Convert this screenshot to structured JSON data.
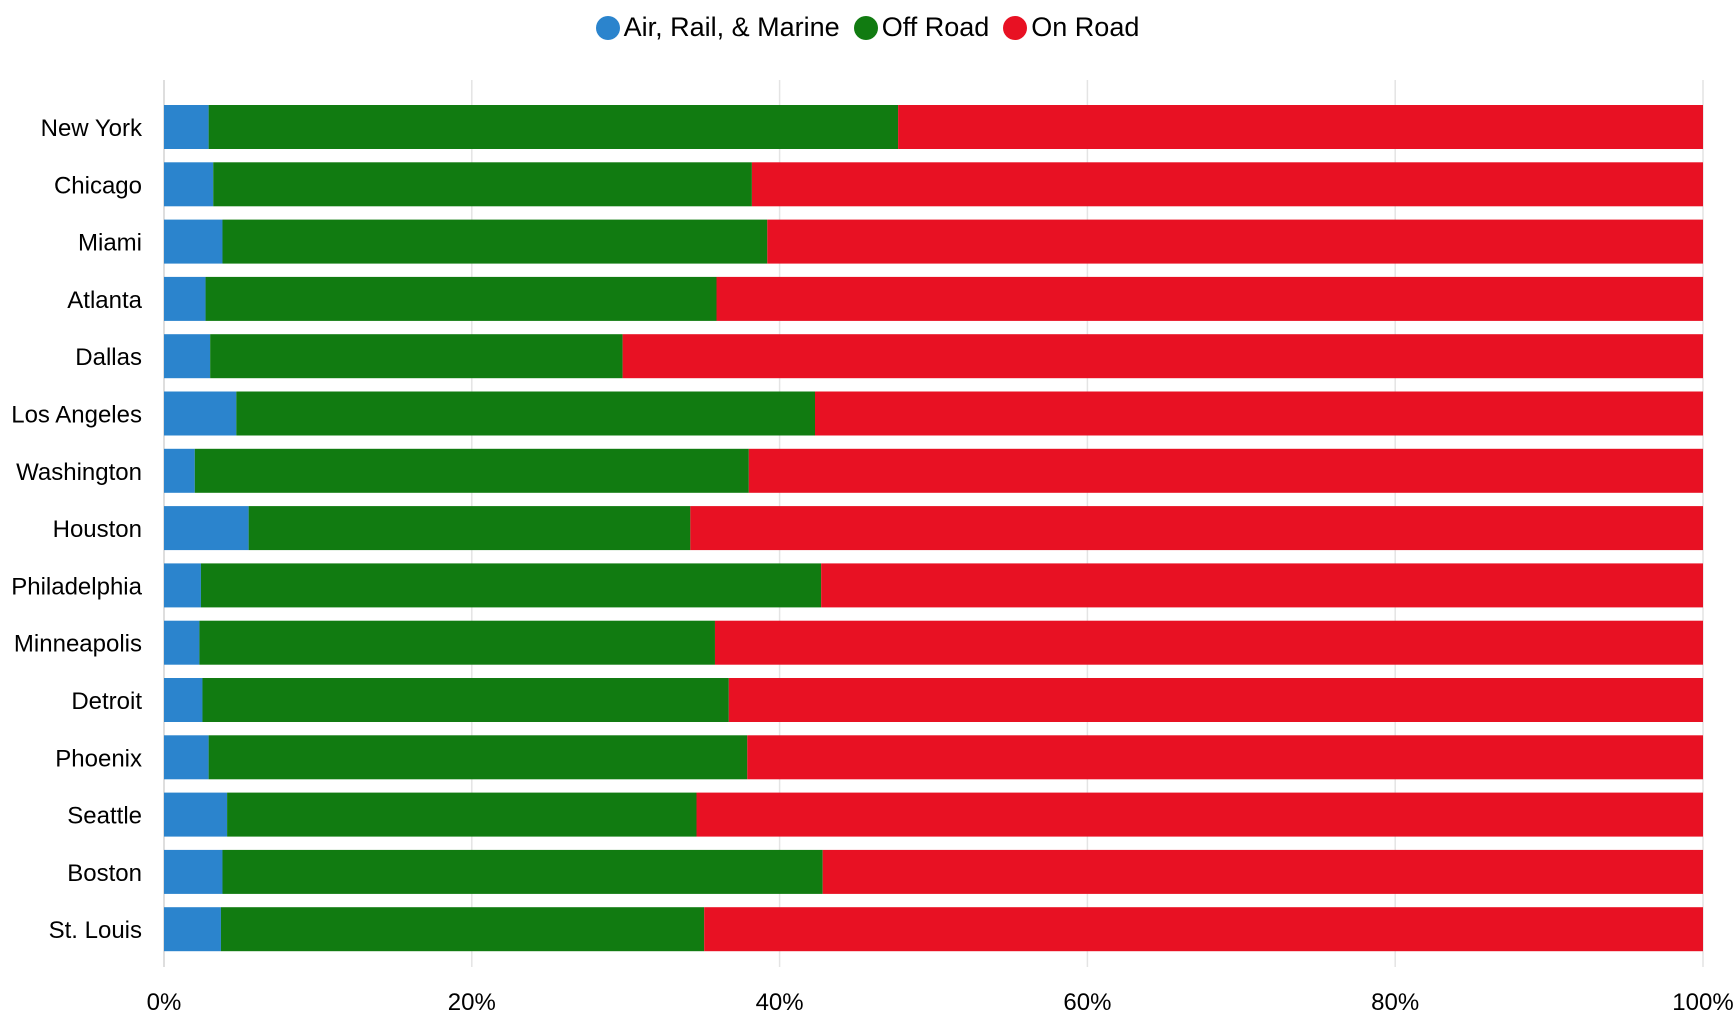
{
  "chart_data": {
    "type": "bar",
    "orientation": "horizontal",
    "stacked": true,
    "normalized": true,
    "title": "",
    "xlabel": "",
    "ylabel": "",
    "categories": [
      "New York",
      "Chicago",
      "Miami",
      "Atlanta",
      "Dallas",
      "Los Angeles",
      "Washington",
      "Houston",
      "Philadelphia",
      "Minneapolis",
      "Detroit",
      "Phoenix",
      "Seattle",
      "Boston",
      "St. Louis"
    ],
    "series": [
      {
        "name": "Air, Rail, & Marine",
        "color": "#2b84cd",
        "values": [
          2.9,
          3.2,
          3.8,
          2.7,
          3.0,
          4.7,
          2.0,
          5.5,
          2.4,
          2.3,
          2.5,
          2.9,
          4.1,
          3.8,
          3.7
        ]
      },
      {
        "name": "Off Road",
        "color": "#117b11",
        "values": [
          44.8,
          35.0,
          35.4,
          33.2,
          26.8,
          37.6,
          36.0,
          28.7,
          40.3,
          33.5,
          34.2,
          35.0,
          30.5,
          39.0,
          31.4
        ]
      },
      {
        "name": "On Road",
        "color": "#e81123",
        "values": [
          52.3,
          61.8,
          60.8,
          64.1,
          70.2,
          57.7,
          62.0,
          65.8,
          57.3,
          64.2,
          63.3,
          62.1,
          65.4,
          57.2,
          64.9
        ]
      }
    ],
    "xlim": [
      0,
      100
    ],
    "xticks": [
      "0%",
      "20%",
      "40%",
      "60%",
      "80%",
      "100%"
    ],
    "grid": true,
    "legend_position": "top-center"
  }
}
